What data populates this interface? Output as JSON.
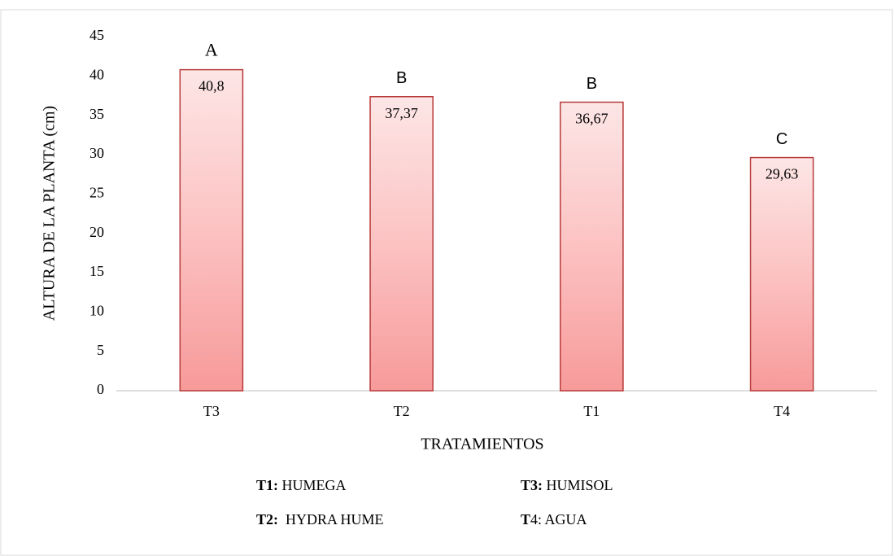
{
  "chart_data": {
    "type": "bar",
    "categories": [
      "T3",
      "T2",
      "T1",
      "T4"
    ],
    "values": [
      40.8,
      37.37,
      36.67,
      29.63
    ],
    "value_labels": [
      "40,8",
      "37,37",
      "36,67",
      "29,63"
    ],
    "annotations": [
      "A",
      "B",
      "B",
      "C"
    ],
    "color": "#f79a9a",
    "edge_color": "#b83a3a",
    "ylim": [
      0,
      45
    ],
    "yticks": [
      0,
      5,
      10,
      15,
      20,
      25,
      30,
      35,
      40,
      45
    ],
    "grid": false,
    "ylabel": "ALTURA DE LA PLANTA (cm)",
    "xlabel": "TRATAMIENTOS",
    "notes": [
      {
        "key": "T1:",
        "text": " HUMEGA"
      },
      {
        "key": "T3:",
        "text": " HUMISOL"
      },
      {
        "key": "T2:",
        "text": "  HYDRA HUME"
      },
      {
        "key": "T",
        "text": "4: AGUA"
      }
    ]
  }
}
